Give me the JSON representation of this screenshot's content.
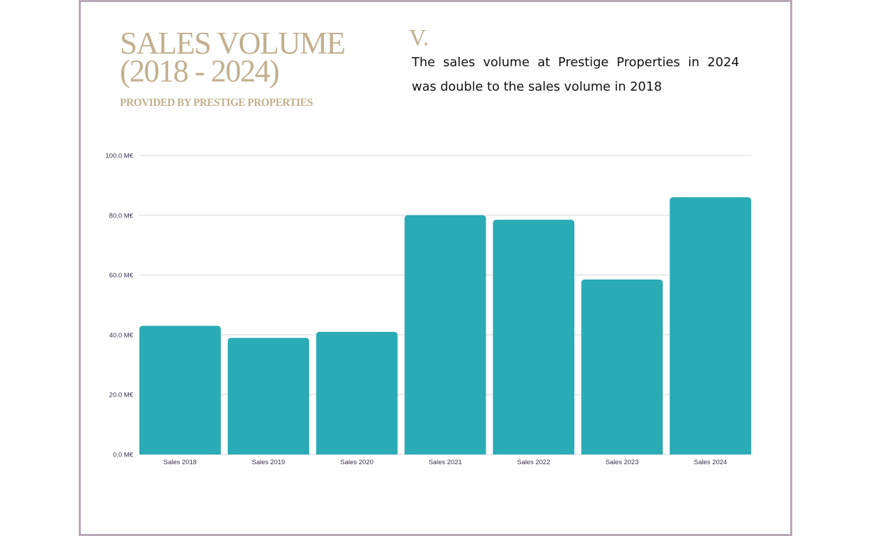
{
  "header": {
    "title_line1": "SALES VOLUME",
    "title_line2": "(2018 - 2024)",
    "subtitle": "PROVIDED BY PRESTIGE PROPERTIES",
    "numeral": "V.",
    "description": "The sales volume at Prestige Properties in 2024 was double to the sales volume in 2018"
  },
  "colors": {
    "bar": "#2aabb5",
    "accent": "#c2b08f",
    "frame": "#b9a8b6",
    "grid": "#d6d6dc"
  },
  "chart_data": {
    "type": "bar",
    "categories": [
      "Sales 2018",
      "Sales 2019",
      "Sales 2020",
      "Sales 2021",
      "Sales 2022",
      "Sales 2023",
      "Sales 2024"
    ],
    "values": [
      43,
      39,
      41,
      80,
      78.5,
      58.5,
      86
    ],
    "ylim": [
      0,
      100
    ],
    "yticks": [
      0,
      20,
      40,
      60,
      80,
      100
    ],
    "ytick_labels": [
      "0.0 M€",
      "20.0 M€",
      "40.0 M€",
      "60.0 M€",
      "80.0 M€",
      "100.0 M€"
    ],
    "grid": true,
    "xlabel": "",
    "ylabel": ""
  }
}
